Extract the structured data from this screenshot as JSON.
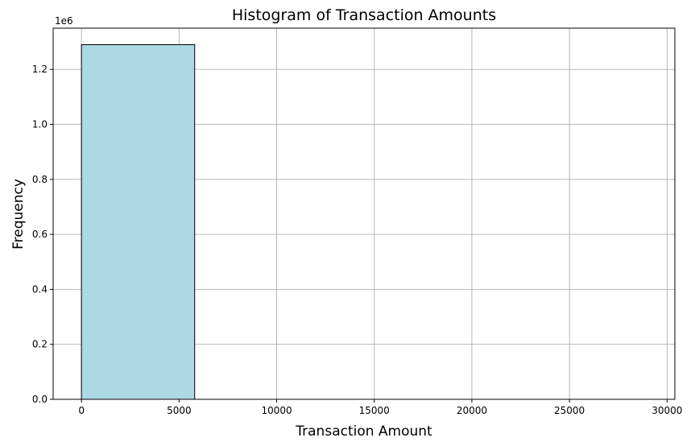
{
  "chart_data": {
    "type": "bar",
    "title": "Histogram of Transaction Amounts",
    "xlabel": "Transaction Amount",
    "ylabel": "Frequency",
    "y_offset_label": "1e6",
    "xlim": [
      -1450,
      30400
    ],
    "ylim": [
      0,
      1350000
    ],
    "grid": true,
    "bar_color": "#add8e6",
    "bar_edge_color": "#000000",
    "bins": [
      {
        "x0": 0,
        "x1": 5800,
        "value": 1290000
      },
      {
        "x0": 5800,
        "x1": 11600,
        "value": 0
      },
      {
        "x0": 11600,
        "x1": 17400,
        "value": 0
      },
      {
        "x0": 17400,
        "x1": 23200,
        "value": 0
      },
      {
        "x0": 23200,
        "x1": 29000,
        "value": 0
      }
    ],
    "xticks": [
      {
        "value": 0,
        "label": "0"
      },
      {
        "value": 5000,
        "label": "5000"
      },
      {
        "value": 10000,
        "label": "10000"
      },
      {
        "value": 15000,
        "label": "15000"
      },
      {
        "value": 20000,
        "label": "20000"
      },
      {
        "value": 25000,
        "label": "25000"
      },
      {
        "value": 30000,
        "label": "30000"
      }
    ],
    "yticks": [
      {
        "value": 0,
        "label": "0.0"
      },
      {
        "value": 200000,
        "label": "0.2"
      },
      {
        "value": 400000,
        "label": "0.4"
      },
      {
        "value": 600000,
        "label": "0.6"
      },
      {
        "value": 800000,
        "label": "0.8"
      },
      {
        "value": 1000000,
        "label": "1.0"
      },
      {
        "value": 1200000,
        "label": "1.2"
      }
    ]
  }
}
